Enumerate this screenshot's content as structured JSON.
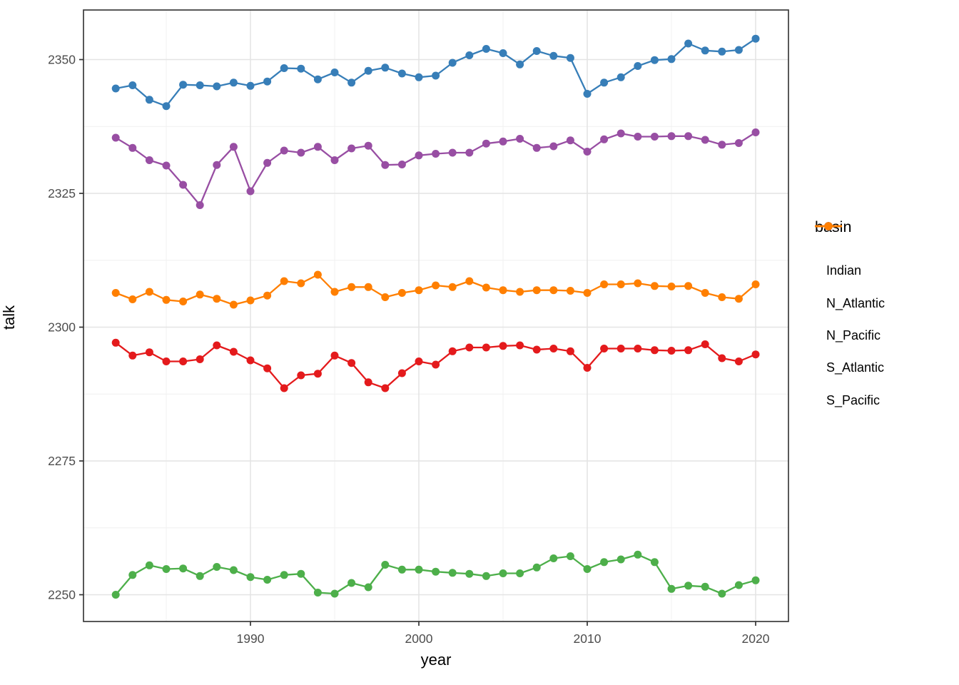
{
  "chart_data": {
    "type": "line",
    "title": "",
    "xlabel": "year",
    "ylabel": "talk",
    "legend_title": "basin",
    "legend_position": "right",
    "grid": true,
    "xlim": [
      1980.1,
      2021.9
    ],
    "ylim": [
      2245,
      2359.7
    ],
    "x_ticks": [
      1990,
      2000,
      2010,
      2020
    ],
    "x_tick_labels": [
      "1990",
      "2000",
      "2010",
      "2020"
    ],
    "x_minor_ticks": [
      1985,
      1995,
      2005,
      2015
    ],
    "y_ticks": [
      2250,
      2275,
      2300,
      2325,
      2350
    ],
    "y_tick_labels": [
      "2250",
      "2275",
      "2300",
      "2325",
      "2350"
    ],
    "y_minor_ticks": [
      2262.5,
      2287.5,
      2312.5,
      2337.5
    ],
    "x": [
      1982,
      1983,
      1984,
      1985,
      1986,
      1987,
      1988,
      1989,
      1990,
      1991,
      1992,
      1993,
      1994,
      1995,
      1996,
      1997,
      1998,
      1999,
      2000,
      2001,
      2002,
      2003,
      2004,
      2005,
      2006,
      2007,
      2008,
      2009,
      2010,
      2011,
      2012,
      2013,
      2014,
      2015,
      2016,
      2017,
      2018,
      2019,
      2020
    ],
    "series": [
      {
        "name": "Indian",
        "color": "#E41A1C",
        "values": [
          2297.1,
          2294.7,
          2295.3,
          2293.6,
          2293.6,
          2294.0,
          2296.6,
          2295.4,
          2293.8,
          2292.3,
          2288.6,
          2291.0,
          2291.3,
          2294.7,
          2293.3,
          2289.7,
          2288.6,
          2291.4,
          2293.6,
          2293.0,
          2295.5,
          2296.2,
          2296.2,
          2296.5,
          2296.6,
          2295.8,
          2296.0,
          2295.5,
          2292.4,
          2296.0,
          2296.0,
          2296.0,
          2295.7,
          2295.6,
          2295.7,
          2296.8,
          2294.2,
          2293.6,
          2294.9
        ]
      },
      {
        "name": "N_Atlantic",
        "color": "#377EB8",
        "values": [
          2344.6,
          2345.2,
          2342.5,
          2341.3,
          2345.3,
          2345.2,
          2345.0,
          2345.7,
          2345.1,
          2345.9,
          2348.4,
          2348.3,
          2346.3,
          2347.6,
          2345.7,
          2347.9,
          2348.5,
          2347.4,
          2346.7,
          2347.0,
          2349.4,
          2350.8,
          2352.0,
          2351.2,
          2349.1,
          2351.6,
          2350.7,
          2350.3,
          2343.6,
          2345.7,
          2346.7,
          2348.8,
          2349.9,
          2350.1,
          2353.0,
          2351.7,
          2351.5,
          2351.8,
          2353.9
        ]
      },
      {
        "name": "N_Pacific",
        "color": "#4DAF4A",
        "values": [
          2250.0,
          2253.7,
          2255.5,
          2254.8,
          2254.9,
          2253.5,
          2255.2,
          2254.6,
          2253.3,
          2252.8,
          2253.7,
          2253.9,
          2250.4,
          2250.2,
          2252.2,
          2251.4,
          2255.6,
          2254.7,
          2254.7,
          2254.3,
          2254.1,
          2253.9,
          2253.5,
          2254.0,
          2254.0,
          2255.1,
          2256.8,
          2257.2,
          2254.8,
          2256.1,
          2256.6,
          2257.5,
          2256.1,
          2251.1,
          2251.7,
          2251.5,
          2250.2,
          2251.8,
          2252.7
        ]
      },
      {
        "name": "S_Atlantic",
        "color": "#984EA3",
        "values": [
          2335.4,
          2333.5,
          2331.2,
          2330.2,
          2326.6,
          2322.8,
          2330.3,
          2333.7,
          2325.4,
          2330.7,
          2333.0,
          2332.6,
          2333.7,
          2331.2,
          2333.4,
          2333.9,
          2330.3,
          2330.4,
          2332.1,
          2332.4,
          2332.6,
          2332.6,
          2334.3,
          2334.7,
          2335.2,
          2333.5,
          2333.8,
          2334.9,
          2332.8,
          2335.1,
          2336.2,
          2335.6,
          2335.6,
          2335.7,
          2335.7,
          2335.0,
          2334.1,
          2334.4,
          2336.4
        ]
      },
      {
        "name": "S_Pacific",
        "color": "#FF7F00",
        "values": [
          2306.4,
          2305.2,
          2306.6,
          2305.1,
          2304.8,
          2306.1,
          2305.3,
          2304.2,
          2305.0,
          2305.9,
          2308.6,
          2308.2,
          2309.8,
          2306.6,
          2307.5,
          2307.5,
          2305.6,
          2306.4,
          2306.9,
          2307.8,
          2307.5,
          2308.6,
          2307.4,
          2306.9,
          2306.6,
          2306.9,
          2306.9,
          2306.8,
          2306.4,
          2308.0,
          2308.0,
          2308.2,
          2307.7,
          2307.6,
          2307.7,
          2306.4,
          2305.6,
          2305.3,
          2308.0
        ]
      }
    ],
    "style": {
      "grid_major_color": "#E4E4E4",
      "grid_minor_color": "#F0F0F0",
      "panel_border_color": "#3B3B3B",
      "tick_color": "#333333",
      "tick_label_color": "#4D4D4D",
      "background": "#FFFFFF"
    }
  }
}
